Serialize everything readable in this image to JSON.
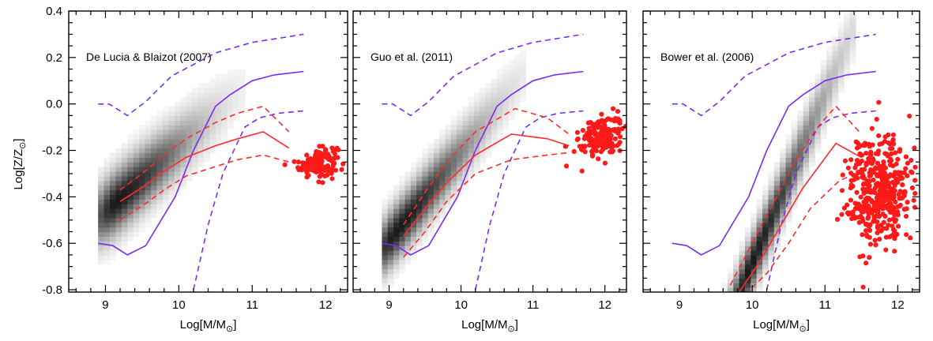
{
  "figure": {
    "ylabel_text": "Log[Z/Z",
    "xlabel_text": "Log[M/M",
    "sun_symbol": "⊙",
    "closing_bracket": "]"
  },
  "colors": {
    "axes": "#000000",
    "median": "#ff2a2a",
    "observed": "#7a2cf0",
    "points": "#ff1a1a"
  },
  "chart_data": [
    {
      "type": "scatter",
      "title": "De Lucia & Blaizot (2007)",
      "xlabel": "Log[M/M⊙]",
      "ylabel": "Log[Z/Z⊙]",
      "xlim": [
        8.5,
        12.3
      ],
      "ylim": [
        -0.81,
        0.4
      ],
      "xticks": [
        "9",
        "10",
        "11",
        "12"
      ],
      "yticks": [
        "0.4",
        "0.2",
        "0.0",
        "-0.2",
        "-0.4",
        "-0.6",
        "-0.8"
      ],
      "density": {
        "center_x": 9.15,
        "center_y": -0.42,
        "slope": 0.28,
        "spread_x": 0.55,
        "spread_y": 0.09,
        "x_range": [
          8.9,
          10.9
        ]
      },
      "model_median": {
        "x": [
          9.2,
          9.5,
          9.8,
          10.1,
          10.5,
          10.8,
          11.15,
          11.5
        ],
        "y": [
          -0.42,
          -0.36,
          -0.29,
          -0.23,
          -0.18,
          -0.15,
          -0.12,
          -0.19
        ]
      },
      "model_p84": {
        "x": [
          9.2,
          9.5,
          9.8,
          10.1,
          10.5,
          10.8,
          11.15,
          11.5
        ],
        "y": [
          -0.37,
          -0.3,
          -0.22,
          -0.15,
          -0.08,
          -0.04,
          -0.01,
          -0.12
        ]
      },
      "model_p16": {
        "x": [
          9.2,
          9.5,
          9.8,
          10.1,
          10.5,
          10.8,
          11.15,
          11.5
        ],
        "y": [
          -0.5,
          -0.44,
          -0.37,
          -0.31,
          -0.27,
          -0.24,
          -0.22,
          -0.25
        ]
      },
      "observed_median": {
        "x": [
          8.9,
          9.1,
          9.3,
          9.55,
          9.95,
          10.2,
          10.5,
          10.7,
          11.0,
          11.3,
          11.7
        ],
        "y": [
          -0.6,
          -0.61,
          -0.65,
          -0.61,
          -0.4,
          -0.2,
          -0.01,
          0.04,
          0.1,
          0.125,
          0.14
        ]
      },
      "observed_p84": {
        "x": [
          8.9,
          9.05,
          9.3,
          9.55,
          9.9,
          10.2,
          10.5,
          11.0,
          11.5,
          11.7
        ],
        "y": [
          0.0,
          0.0,
          -0.05,
          0.01,
          0.12,
          0.17,
          0.22,
          0.265,
          0.29,
          0.3
        ]
      },
      "observed_p16": {
        "x": [
          10.2,
          10.4,
          10.6,
          10.9,
          11.1,
          11.35,
          11.7
        ],
        "y": [
          -0.8,
          -0.52,
          -0.3,
          -0.1,
          -0.06,
          -0.04,
          -0.03
        ]
      },
      "points": {
        "center_x": 11.9,
        "center_y": -0.25,
        "n": 150,
        "sx": 0.13,
        "sy": 0.03
      },
      "legend": "none"
    },
    {
      "type": "scatter",
      "title": "Guo et al. (2011)",
      "xlabel": "Log[M/M⊙]",
      "xlim": [
        8.5,
        12.3
      ],
      "ylim": [
        -0.81,
        0.4
      ],
      "xticks": [
        "9",
        "10",
        "11",
        "12"
      ],
      "density": {
        "center_x": 9.1,
        "center_y": -0.55,
        "slope": 0.38,
        "spread_x": 0.6,
        "spread_y": 0.08,
        "x_range": [
          8.9,
          10.9
        ]
      },
      "model_median": {
        "x": [
          9.2,
          9.5,
          9.8,
          10.2,
          10.7,
          11.2,
          11.5
        ],
        "y": [
          -0.57,
          -0.45,
          -0.34,
          -0.22,
          -0.13,
          -0.15,
          -0.18
        ]
      },
      "model_p84": {
        "x": [
          9.2,
          9.5,
          9.8,
          10.2,
          10.75,
          11.2,
          11.5
        ],
        "y": [
          -0.52,
          -0.38,
          -0.25,
          -0.12,
          -0.02,
          -0.06,
          -0.13
        ]
      },
      "model_p16": {
        "x": [
          9.2,
          9.5,
          9.8,
          10.2,
          10.7,
          11.2,
          11.5
        ],
        "y": [
          -0.66,
          -0.55,
          -0.42,
          -0.3,
          -0.24,
          -0.22,
          -0.21
        ]
      },
      "observed_median": {
        "x": [
          8.9,
          9.1,
          9.3,
          9.55,
          9.95,
          10.2,
          10.5,
          10.7,
          11.0,
          11.3,
          11.7
        ],
        "y": [
          -0.6,
          -0.61,
          -0.65,
          -0.61,
          -0.4,
          -0.2,
          -0.01,
          0.04,
          0.1,
          0.125,
          0.14
        ]
      },
      "observed_p84": {
        "x": [
          8.9,
          9.05,
          9.3,
          9.55,
          9.9,
          10.2,
          10.5,
          11.0,
          11.5,
          11.7
        ],
        "y": [
          0.0,
          0.0,
          -0.05,
          0.01,
          0.12,
          0.17,
          0.22,
          0.265,
          0.29,
          0.3
        ]
      },
      "observed_p16": {
        "x": [
          10.2,
          10.4,
          10.6,
          10.9,
          11.1,
          11.35,
          11.7
        ],
        "y": [
          -0.8,
          -0.52,
          -0.3,
          -0.1,
          -0.06,
          -0.04,
          -0.03
        ]
      },
      "points": {
        "center_x": 11.95,
        "center_y": -0.14,
        "n": 180,
        "sx": 0.15,
        "sy": 0.045
      },
      "legend": "none"
    },
    {
      "type": "scatter",
      "title": "Bower et al. (2006)",
      "xlabel": "Log[M/M⊙]",
      "xlim": [
        8.5,
        12.3
      ],
      "ylim": [
        -0.81,
        0.4
      ],
      "xticks": [
        "9",
        "10",
        "11",
        "12"
      ],
      "density": {
        "center_x": 9.95,
        "center_y": -0.72,
        "slope": 0.72,
        "spread_x": 0.55,
        "spread_y": 0.08,
        "x_range": [
          9.5,
          11.4
        ]
      },
      "model_median": {
        "x": [
          9.8,
          10.1,
          10.4,
          10.7,
          11.15,
          11.5
        ],
        "y": [
          -0.82,
          -0.68,
          -0.52,
          -0.36,
          -0.17,
          -0.23
        ]
      },
      "model_p84": {
        "x": [
          9.7,
          10.0,
          10.3,
          10.6,
          10.9,
          11.15,
          11.5
        ],
        "y": [
          -0.78,
          -0.6,
          -0.42,
          -0.24,
          -0.1,
          -0.01,
          -0.13
        ]
      },
      "model_p16": {
        "x": [
          9.9,
          10.2,
          10.5,
          10.8,
          11.2,
          11.5
        ],
        "y": [
          -0.82,
          -0.73,
          -0.6,
          -0.45,
          -0.33,
          -0.29
        ]
      },
      "observed_median": {
        "x": [
          8.9,
          9.1,
          9.3,
          9.55,
          9.95,
          10.2,
          10.5,
          10.7,
          11.0,
          11.3,
          11.7
        ],
        "y": [
          -0.6,
          -0.61,
          -0.65,
          -0.61,
          -0.4,
          -0.2,
          -0.01,
          0.04,
          0.1,
          0.125,
          0.14
        ]
      },
      "observed_p84": {
        "x": [
          8.9,
          9.05,
          9.3,
          9.55,
          9.9,
          10.2,
          10.5,
          11.0,
          11.5,
          11.7
        ],
        "y": [
          0.0,
          0.0,
          -0.05,
          0.01,
          0.12,
          0.17,
          0.22,
          0.265,
          0.29,
          0.3
        ]
      },
      "observed_p16": {
        "x": [
          10.2,
          10.4,
          10.6,
          10.9,
          11.1,
          11.35,
          11.7
        ],
        "y": [
          -0.8,
          -0.52,
          -0.3,
          -0.1,
          -0.06,
          -0.04,
          -0.03
        ]
      },
      "points": {
        "center_x": 11.75,
        "center_y": -0.38,
        "n": 420,
        "sx": 0.22,
        "sy": 0.12
      },
      "legend": "none"
    }
  ]
}
